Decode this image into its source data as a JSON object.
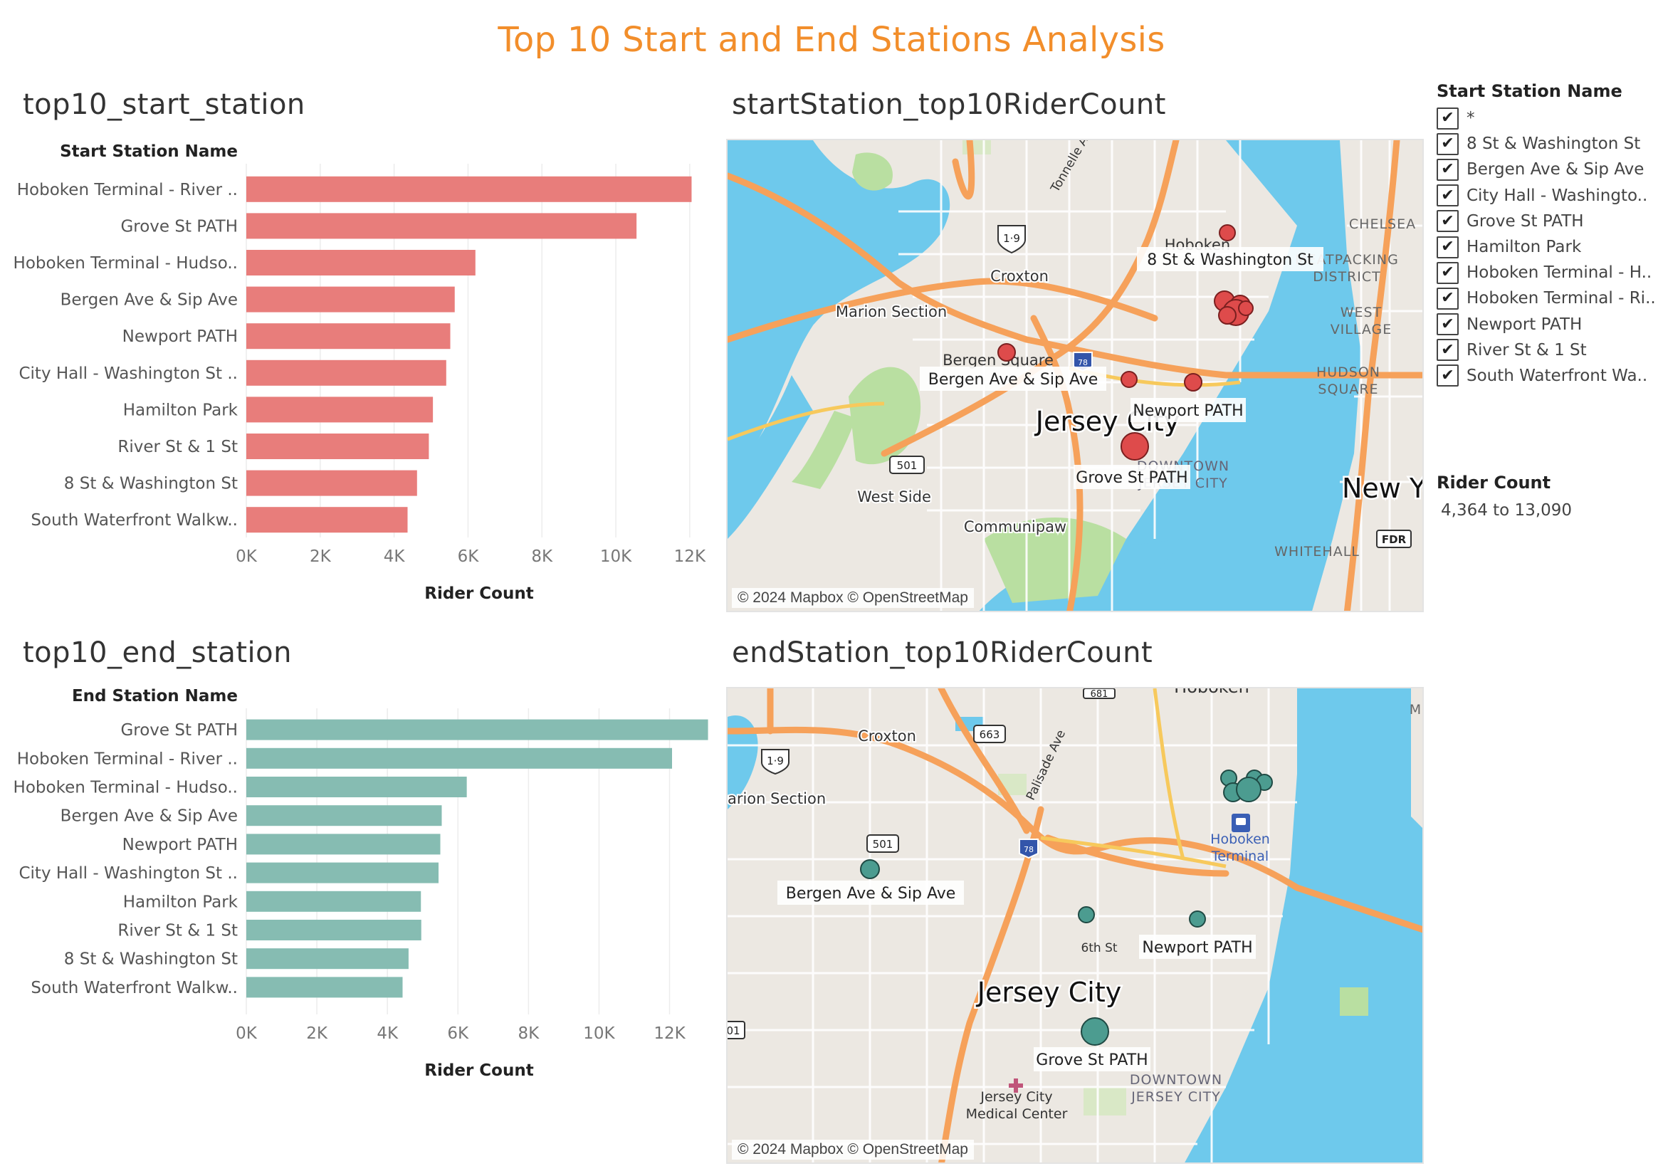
{
  "dashboard": {
    "title": "Top 10 Start and End Stations Analysis"
  },
  "colors": {
    "title": "#f28e2b",
    "start_bar": "#e87d7b",
    "end_bar": "#86bcb2",
    "start_marker": "#de4b4b",
    "end_marker": "#4c9c90"
  },
  "chart_data": [
    {
      "type": "bar",
      "orientation": "horizontal",
      "title": "top10_start_station",
      "category_header": "Start Station Name",
      "xlabel": "Rider Count",
      "xlim": [
        0,
        12600
      ],
      "ticks": [
        0,
        2000,
        4000,
        6000,
        8000,
        10000,
        12000
      ],
      "tick_labels": [
        "0K",
        "2K",
        "4K",
        "6K",
        "8K",
        "10K",
        "12K"
      ],
      "categories": [
        "Hoboken Terminal - River ..",
        "Grove St PATH",
        "Hoboken Terminal - Hudso..",
        "Bergen Ave & Sip Ave",
        "Newport PATH",
        "City Hall - Washington St ..",
        "Hamilton Park",
        "River St & 1 St",
        "8 St & Washington St",
        "South Waterfront Walkw.."
      ],
      "values": [
        12050,
        10560,
        6200,
        5640,
        5520,
        5410,
        5050,
        4940,
        4620,
        4364
      ]
    },
    {
      "type": "bar",
      "orientation": "horizontal",
      "title": "top10_end_station",
      "category_header": "End Station Name",
      "xlabel": "Rider Count",
      "xlim": [
        0,
        13200
      ],
      "ticks": [
        0,
        2000,
        4000,
        6000,
        8000,
        10000,
        12000
      ],
      "tick_labels": [
        "0K",
        "2K",
        "4K",
        "6K",
        "8K",
        "10K",
        "12K"
      ],
      "categories": [
        "Grove St PATH",
        "Hoboken Terminal - River ..",
        "Hoboken Terminal - Hudso..",
        "Bergen Ave & Sip Ave",
        "Newport PATH",
        "City Hall - Washington St ..",
        "Hamilton Park",
        "River St & 1 St",
        "8 St & Washington St",
        "South Waterfront Walkw.."
      ],
      "values": [
        13090,
        12070,
        6250,
        5540,
        5500,
        5450,
        4950,
        4960,
        4600,
        4430
      ]
    }
  ],
  "maps": {
    "start": {
      "title": "startStation_top10RiderCount",
      "credit": "© 2024 Mapbox © OpenStreetMap",
      "place_labels": [
        "Croxton",
        "Marion Section",
        "West Side",
        "Communipaw",
        "Jersey City",
        "New York",
        "CHELSEA",
        "MEATPACKING",
        "DISTRICT",
        "WEST",
        "VILLAGE",
        "HUDSON",
        "SQUARE",
        "WHITEHALL",
        "DOWNTOWN",
        "JERSEY CITY",
        "Hoboken",
        "Bergen Square",
        "Tonnelle Ave"
      ],
      "road_shields": [
        "1·9",
        "501",
        "78",
        "FDR"
      ],
      "station_labels": [
        "8 St & Washington St",
        "Bergen Ave & Sip Ave",
        "Newport PATH",
        "Grove St PATH"
      ]
    },
    "end": {
      "title": "endStation_top10RiderCount",
      "credit": "© 2024 Mapbox © OpenStreetMap",
      "place_labels": [
        "Croxton",
        "Marion Section",
        "Palisade Ave",
        "Hoboken",
        "Hoboken",
        "Terminal",
        "6th St",
        "Jersey City",
        "DOWNTOWN",
        "JERSEY CITY",
        "Jersey City",
        "Medical Center",
        "M"
      ],
      "road_shields": [
        "1·9",
        "663",
        "501",
        "78",
        "681",
        "01"
      ],
      "station_labels": [
        "Bergen Ave & Sip Ave",
        "Newport PATH",
        "Grove St PATH"
      ]
    }
  },
  "filter": {
    "title": "Start Station Name",
    "check_glyph": "✔",
    "items": [
      "*",
      "8 St & Washington St",
      "Bergen Ave & Sip Ave",
      "City Hall - Washingto..",
      "Grove St PATH",
      "Hamilton Park",
      "Hoboken Terminal - H..",
      "Hoboken Terminal - Ri..",
      "Newport PATH",
      "River St & 1 St",
      "South Waterfront Wa.."
    ]
  },
  "legend": {
    "title": "Rider Count",
    "range": "4,364 to 13,090"
  }
}
